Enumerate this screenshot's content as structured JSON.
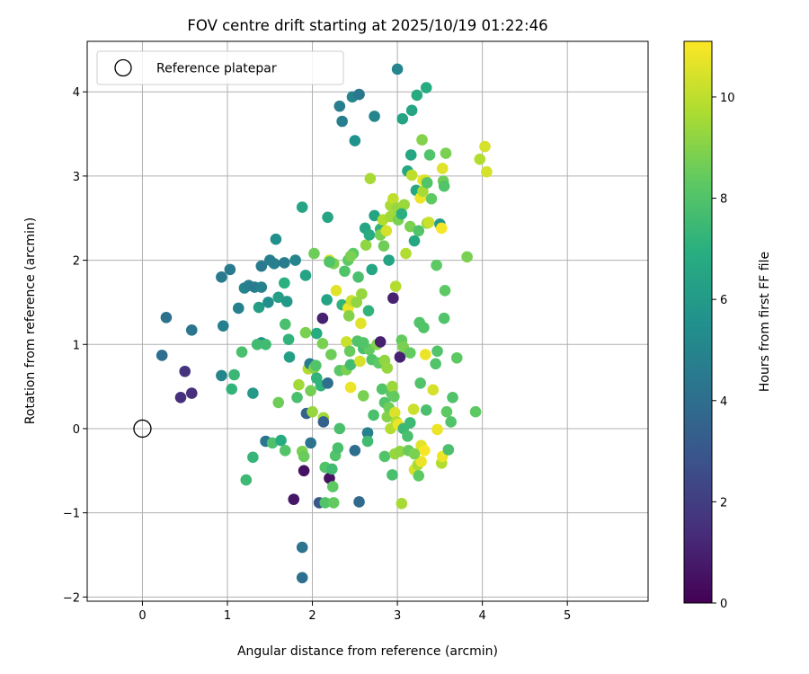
{
  "chart_data": {
    "type": "scatter",
    "title": "FOV centre drift starting at 2025/10/19 01:22:46",
    "xlabel": "Angular distance from reference (arcmin)",
    "ylabel": "Rotation from reference (arcmin)",
    "xlim": [
      -0.65,
      5.95
    ],
    "ylim": [
      -2.05,
      4.6
    ],
    "xticks": [
      0,
      1,
      2,
      3,
      4,
      5
    ],
    "yticks": [
      -2,
      -1,
      0,
      1,
      2,
      3,
      4
    ],
    "grid": true,
    "legend": {
      "position": "top-left",
      "entries": [
        "Reference platepar"
      ]
    },
    "reference_point": {
      "x": 0,
      "y": 0,
      "label": "Reference platepar"
    },
    "colorbar": {
      "label": "Hours from first FF file",
      "min": 0,
      "max": 11.1,
      "ticks": [
        0,
        2,
        4,
        6,
        8,
        10
      ],
      "colormap": "viridis"
    },
    "points": [
      [
        0.23,
        0.87,
        4.0
      ],
      [
        0.28,
        1.32,
        4.1
      ],
      [
        0.45,
        0.37,
        1.5
      ],
      [
        0.5,
        0.68,
        1.6
      ],
      [
        0.58,
        0.42,
        1.5
      ],
      [
        0.58,
        1.17,
        4.3
      ],
      [
        0.93,
        1.8,
        4.5
      ],
      [
        0.95,
        1.22,
        4.8
      ],
      [
        0.93,
        0.63,
        5.0
      ],
      [
        1.03,
        1.89,
        4.5
      ],
      [
        1.05,
        0.47,
        7.2
      ],
      [
        1.08,
        0.64,
        7.4
      ],
      [
        1.13,
        1.43,
        4.8
      ],
      [
        1.17,
        0.91,
        7.8
      ],
      [
        1.2,
        1.67,
        5.0
      ],
      [
        1.25,
        1.7,
        4.7
      ],
      [
        1.32,
        1.68,
        4.6
      ],
      [
        1.4,
        1.68,
        4.9
      ],
      [
        1.22,
        -0.61,
        7.5
      ],
      [
        1.3,
        0.42,
        6.0
      ],
      [
        1.3,
        -0.34,
        7.3
      ],
      [
        1.37,
        1.44,
        6.2
      ],
      [
        1.4,
        1.93,
        4.5
      ],
      [
        1.4,
        1.02,
        5.5
      ],
      [
        1.45,
        1.0,
        7.6
      ],
      [
        1.45,
        -0.15,
        4.3
      ],
      [
        1.48,
        1.5,
        5.4
      ],
      [
        1.53,
        -0.17,
        7.9
      ],
      [
        1.55,
        1.96,
        4.8
      ],
      [
        1.57,
        2.25,
        5.5
      ],
      [
        1.6,
        1.56,
        6.2
      ],
      [
        1.6,
        0.31,
        8.6
      ],
      [
        1.63,
        -0.14,
        6.8
      ],
      [
        1.67,
        1.97,
        4.6
      ],
      [
        1.67,
        1.73,
        7.0
      ],
      [
        1.68,
        1.24,
        7.8
      ],
      [
        1.68,
        -0.26,
        8.0
      ],
      [
        1.7,
        1.51,
        6.0
      ],
      [
        1.72,
        1.06,
        7.2
      ],
      [
        1.73,
        0.85,
        6.2
      ],
      [
        1.78,
        -0.84,
        0.7
      ],
      [
        1.8,
        2.0,
        5.0
      ],
      [
        1.82,
        0.37,
        7.8
      ],
      [
        1.84,
        0.52,
        9.5
      ],
      [
        1.88,
        2.63,
        6.5
      ],
      [
        1.9,
        -0.5,
        0.5
      ],
      [
        1.88,
        -0.27,
        8.8
      ],
      [
        1.9,
        -0.33,
        8.5
      ],
      [
        1.88,
        -1.41,
        4.2
      ],
      [
        1.88,
        -1.77,
        4.0
      ],
      [
        1.92,
        1.82,
        6.4
      ],
      [
        1.92,
        1.14,
        8.8
      ],
      [
        1.93,
        0.18,
        3.5
      ],
      [
        1.95,
        0.71,
        9.8
      ],
      [
        1.97,
        0.77,
        4.5
      ],
      [
        1.98,
        0.45,
        8.7
      ],
      [
        1.98,
        -0.17,
        4.2
      ],
      [
        2.0,
        0.2,
        9.3
      ],
      [
        2.02,
        2.08,
        8.6
      ],
      [
        2.02,
        0.72,
        9.0
      ],
      [
        2.04,
        0.75,
        8.0
      ],
      [
        2.05,
        1.13,
        6.8
      ],
      [
        2.08,
        -0.88,
        3.0
      ],
      [
        2.1,
        0.51,
        7.2
      ],
      [
        2.12,
        1.31,
        1.0
      ],
      [
        2.12,
        1.01,
        8.8
      ],
      [
        2.13,
        0.13,
        9.5
      ],
      [
        2.13,
        0.08,
        3.4
      ],
      [
        2.15,
        -0.46,
        8.0
      ],
      [
        2.15,
        -0.88,
        8.0
      ],
      [
        2.17,
        1.53,
        6.4
      ],
      [
        2.18,
        2.51,
        6.5
      ],
      [
        2.18,
        0.54,
        4.0
      ],
      [
        2.2,
        -0.59,
        0.5
      ],
      [
        2.2,
        2.0,
        10.4
      ],
      [
        2.22,
        0.88,
        8.6
      ],
      [
        2.23,
        -0.48,
        7.6
      ],
      [
        2.24,
        -0.69,
        8.3
      ],
      [
        2.25,
        1.96,
        8.8
      ],
      [
        2.25,
        -0.88,
        8.4
      ],
      [
        2.27,
        -0.32,
        8.0
      ],
      [
        2.28,
        1.64,
        10.6
      ],
      [
        2.3,
        -0.23,
        7.8
      ],
      [
        2.32,
        0.0,
        7.8
      ],
      [
        2.32,
        3.83,
        4.7
      ],
      [
        2.32,
        0.69,
        8.2
      ],
      [
        2.35,
        3.65,
        4.7
      ],
      [
        2.35,
        1.47,
        7.2
      ],
      [
        2.38,
        1.87,
        8.0
      ],
      [
        2.4,
        0.7,
        8.8
      ],
      [
        2.4,
        1.03,
        10.2
      ],
      [
        2.42,
        2.0,
        8.3
      ],
      [
        2.42,
        1.43,
        10.8
      ],
      [
        2.43,
        1.34,
        9.0
      ],
      [
        2.44,
        0.92,
        8.5
      ],
      [
        2.45,
        0.49,
        10.8
      ],
      [
        2.45,
        0.76,
        7.6
      ],
      [
        2.46,
        1.52,
        10.2
      ],
      [
        2.47,
        3.94,
        5.0
      ],
      [
        2.48,
        2.08,
        8.3
      ],
      [
        2.5,
        -0.26,
        4.0
      ],
      [
        2.5,
        3.42,
        5.6
      ],
      [
        2.52,
        1.5,
        9.2
      ],
      [
        2.53,
        1.04,
        8.0
      ],
      [
        2.54,
        1.8,
        7.8
      ],
      [
        2.55,
        -0.87,
        3.8
      ],
      [
        2.55,
        3.97,
        4.4
      ],
      [
        2.56,
        0.8,
        10.4
      ],
      [
        2.57,
        1.25,
        10.6
      ],
      [
        2.58,
        1.6,
        9.3
      ],
      [
        2.6,
        0.39,
        8.8
      ],
      [
        2.6,
        0.95,
        7.8
      ],
      [
        2.62,
        2.38,
        6.5
      ],
      [
        2.63,
        2.18,
        9.2
      ],
      [
        2.65,
        -0.05,
        4.8
      ],
      [
        2.65,
        -0.15,
        7.6
      ],
      [
        2.66,
        1.4,
        7.2
      ],
      [
        2.67,
        0.94,
        8.4
      ],
      [
        2.67,
        2.3,
        6.8
      ],
      [
        2.68,
        2.97,
        9.6
      ],
      [
        2.7,
        0.82,
        8.0
      ],
      [
        2.7,
        1.89,
        6.5
      ],
      [
        2.72,
        0.16,
        7.8
      ],
      [
        2.73,
        2.53,
        6.4
      ],
      [
        2.73,
        3.71,
        5.0
      ],
      [
        2.76,
        1.0,
        9.0
      ],
      [
        2.78,
        0.78,
        8.3
      ],
      [
        2.8,
        2.37,
        7.2
      ],
      [
        2.8,
        2.3,
        8.8
      ],
      [
        2.8,
        1.03,
        1.0
      ],
      [
        2.82,
        0.47,
        8.0
      ],
      [
        2.83,
        2.48,
        9.8
      ],
      [
        2.84,
        2.17,
        8.6
      ],
      [
        2.85,
        0.81,
        9.2
      ],
      [
        2.85,
        0.31,
        8.0
      ],
      [
        2.85,
        -0.33,
        8.0
      ],
      [
        2.87,
        2.35,
        10.4
      ],
      [
        2.88,
        0.14,
        9.0
      ],
      [
        2.88,
        0.72,
        9.3
      ],
      [
        2.9,
        2.0,
        6.4
      ],
      [
        2.9,
        0.25,
        8.6
      ],
      [
        2.92,
        0.0,
        9.8
      ],
      [
        2.92,
        2.52,
        9.5
      ],
      [
        2.92,
        2.65,
        9.6
      ],
      [
        2.93,
        0.42,
        8.3
      ],
      [
        2.94,
        0.5,
        9.4
      ],
      [
        2.94,
        -0.55,
        7.8
      ],
      [
        2.95,
        1.55,
        1.0
      ],
      [
        2.95,
        2.73,
        10.0
      ],
      [
        2.96,
        0.38,
        8.4
      ],
      [
        2.97,
        0.19,
        10.5
      ],
      [
        2.97,
        -0.3,
        9.3
      ],
      [
        2.98,
        1.69,
        9.8
      ],
      [
        2.99,
        0.08,
        9.8
      ],
      [
        3.0,
        4.27,
        5.0
      ],
      [
        3.0,
        2.62,
        9.3
      ],
      [
        3.01,
        0.05,
        10.8
      ],
      [
        3.01,
        2.48,
        8.8
      ],
      [
        3.03,
        0.85,
        1.0
      ],
      [
        3.03,
        -0.27,
        9.2
      ],
      [
        3.05,
        -0.89,
        9.6
      ],
      [
        3.05,
        1.05,
        8.4
      ],
      [
        3.06,
        3.68,
        6.4
      ],
      [
        3.07,
        0.97,
        8.8
      ],
      [
        3.07,
        0.0,
        7.5
      ],
      [
        3.08,
        2.66,
        9.4
      ],
      [
        3.1,
        2.08,
        9.8
      ],
      [
        3.12,
        3.06,
        6.6
      ],
      [
        3.12,
        -0.09,
        7.8
      ],
      [
        3.13,
        -0.26,
        8.5
      ],
      [
        3.15,
        2.4,
        8.8
      ],
      [
        3.15,
        0.07,
        7.5
      ],
      [
        3.16,
        3.25,
        6.6
      ],
      [
        3.17,
        3.78,
        6.5
      ],
      [
        3.17,
        3.01,
        10.0
      ],
      [
        3.19,
        0.23,
        10.2
      ],
      [
        3.2,
        -0.49,
        10.4
      ],
      [
        3.2,
        2.23,
        6.6
      ],
      [
        3.22,
        2.83,
        6.6
      ],
      [
        3.23,
        3.96,
        6.8
      ],
      [
        3.24,
        -0.43,
        9.6
      ],
      [
        3.25,
        -0.56,
        8.3
      ],
      [
        3.25,
        2.35,
        8.0
      ],
      [
        3.26,
        1.26,
        8.0
      ],
      [
        3.27,
        0.54,
        8.0
      ],
      [
        3.27,
        2.74,
        10.8
      ],
      [
        3.28,
        -0.39,
        10.8
      ],
      [
        3.28,
        -0.2,
        10.6
      ],
      [
        3.29,
        3.43,
        9.0
      ],
      [
        3.3,
        2.95,
        10.8
      ],
      [
        3.3,
        2.82,
        9.6
      ],
      [
        3.31,
        1.2,
        8.0
      ],
      [
        3.32,
        -0.26,
        11.0
      ],
      [
        3.33,
        0.88,
        10.8
      ],
      [
        3.33,
        2.95,
        10.4
      ],
      [
        3.34,
        0.22,
        7.8
      ],
      [
        3.34,
        4.05,
        6.8
      ],
      [
        3.35,
        2.44,
        9.4
      ],
      [
        3.35,
        2.92,
        8.0
      ],
      [
        3.37,
        2.45,
        10.2
      ],
      [
        3.38,
        3.25,
        8.0
      ],
      [
        3.4,
        2.73,
        8.3
      ],
      [
        3.42,
        0.46,
        10.4
      ],
      [
        3.45,
        0.77,
        8.0
      ],
      [
        3.46,
        1.94,
        8.3
      ],
      [
        3.47,
        0.92,
        8.0
      ],
      [
        3.47,
        -0.01,
        10.8
      ],
      [
        3.5,
        2.43,
        6.0
      ],
      [
        3.52,
        2.38,
        11.0
      ],
      [
        3.52,
        -0.41,
        9.8
      ],
      [
        3.53,
        -0.33,
        10.8
      ],
      [
        3.53,
        3.09,
        10.6
      ],
      [
        3.54,
        2.94,
        8.6
      ],
      [
        3.55,
        2.88,
        8.0
      ],
      [
        3.55,
        1.31,
        8.0
      ],
      [
        3.56,
        1.64,
        8.3
      ],
      [
        3.57,
        3.27,
        8.8
      ],
      [
        3.58,
        0.2,
        8.3
      ],
      [
        3.6,
        -0.25,
        7.8
      ],
      [
        3.63,
        0.08,
        8.0
      ],
      [
        3.65,
        0.37,
        8.0
      ],
      [
        3.7,
        0.84,
        8.3
      ],
      [
        3.82,
        2.04,
        8.8
      ],
      [
        3.92,
        0.2,
        8.3
      ],
      [
        3.97,
        3.2,
        9.8
      ],
      [
        4.03,
        3.35,
        10.4
      ],
      [
        4.05,
        3.05,
        10.4
      ],
      [
        1.5,
        2.0,
        4.7
      ],
      [
        1.35,
        1.0,
        7.6
      ],
      [
        2.05,
        0.6,
        7.2
      ],
      [
        2.2,
        1.98,
        8.0
      ],
      [
        2.6,
        1.02,
        8.0
      ],
      [
        3.05,
        2.55,
        7.0
      ],
      [
        3.2,
        -0.3,
        8.8
      ],
      [
        2.45,
        2.05,
        8.8
      ],
      [
        3.15,
        0.9,
        8.4
      ]
    ]
  }
}
